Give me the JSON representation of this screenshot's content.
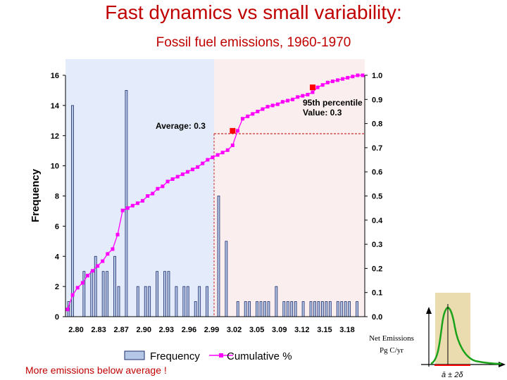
{
  "page": {
    "title": "Fast dynamics vs small variability:",
    "subtitle": "Fossil fuel emissions, 1960-1970",
    "footnote": "More emissions below average !",
    "net_label_line1": "Net Emissions",
    "net_label_line2": "Pg C/yr",
    "inset_label": "ā ± 2δ"
  },
  "colors": {
    "title": "#c00000",
    "bars": "#b4c7e7",
    "bar_edge": "#1f2d6b",
    "cumulative": "#ff00ff",
    "marker": "#ff0000",
    "shaded_left": "#e4ecfb",
    "shaded_right": "#fbeeee",
    "inset_bg": "#ebdcb0",
    "inset_curve": "#1aa31a"
  },
  "chart_data": {
    "type": "bar",
    "title": "Fossil fuel emissions, 1960-1970",
    "xlabel": "",
    "ylabel": "Frequency",
    "y2label": "",
    "ylim": [
      0,
      16
    ],
    "y2lim": [
      0,
      1.0
    ],
    "yticks": [
      "0",
      "2",
      "4",
      "6",
      "8",
      "10",
      "12",
      "14",
      "16"
    ],
    "y2ticks": [
      "0.0",
      "0.1",
      "0.2",
      "0.3",
      "0.4",
      "0.5",
      "0.6",
      "0.7",
      "0.8",
      "0.9",
      "1.0"
    ],
    "x_tick_labels": [
      "2.80",
      "2.83",
      "2.87",
      "2.90",
      "2.93",
      "2.96",
      "2.99",
      "3.02",
      "3.05",
      "3.09",
      "3.12",
      "3.15",
      "3.18"
    ],
    "frequency": [
      1,
      14,
      0,
      0,
      3,
      0,
      3,
      4,
      0,
      3,
      3,
      0,
      4,
      2,
      0,
      15,
      0,
      0,
      2,
      0,
      2,
      2,
      0,
      3,
      0,
      3,
      3,
      0,
      2,
      0,
      2,
      2,
      0,
      1,
      2,
      0,
      2,
      0,
      0,
      8,
      0,
      5,
      0,
      0,
      1,
      0,
      1,
      1,
      0,
      1,
      1,
      1,
      1,
      0,
      2,
      0,
      1,
      1,
      1,
      1,
      0,
      1,
      0,
      1,
      1,
      1,
      1,
      1,
      1,
      0,
      1,
      1,
      1,
      1,
      0,
      1
    ],
    "cumulative_pct": [
      0.03,
      0.09,
      0.12,
      0.14,
      0.17,
      0.19,
      0.21,
      0.23,
      0.26,
      0.28,
      0.34,
      0.44,
      0.45,
      0.46,
      0.47,
      0.48,
      0.5,
      0.51,
      0.53,
      0.54,
      0.56,
      0.57,
      0.58,
      0.59,
      0.6,
      0.61,
      0.62,
      0.635,
      0.65,
      0.66,
      0.67,
      0.68,
      0.69,
      0.71,
      0.77,
      0.82,
      0.83,
      0.84,
      0.85,
      0.86,
      0.87,
      0.875,
      0.88,
      0.89,
      0.895,
      0.9,
      0.91,
      0.915,
      0.92,
      0.93,
      0.95,
      0.96,
      0.97,
      0.975,
      0.98,
      0.985,
      0.99,
      0.995,
      1.0,
      1.0
    ],
    "series": [
      {
        "name": "Frequency",
        "kind": "bar"
      },
      {
        "name": "Cumulative %",
        "kind": "line"
      }
    ],
    "legend_position": "bottom",
    "annotations": [
      {
        "text": "Average: 0.3"
      },
      {
        "text": "95th percentile"
      },
      {
        "text": "Value: 0.3"
      }
    ],
    "average_marker": {
      "index": 33,
      "value": 0.77
    },
    "percentile_marker": {
      "index": 49,
      "value": 0.95
    }
  }
}
